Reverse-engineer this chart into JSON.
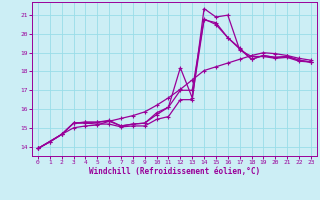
{
  "xlabel": "Windchill (Refroidissement éolien,°C)",
  "xlim": [
    -0.5,
    23.5
  ],
  "ylim": [
    13.5,
    21.7
  ],
  "xticks": [
    0,
    1,
    2,
    3,
    4,
    5,
    6,
    7,
    8,
    9,
    10,
    11,
    12,
    13,
    14,
    15,
    16,
    17,
    18,
    19,
    20,
    21,
    22,
    23
  ],
  "yticks": [
    14,
    15,
    16,
    17,
    18,
    19,
    20,
    21
  ],
  "background_color": "#cceef5",
  "grid_color": "#99dde8",
  "line_color": "#990099",
  "line1_x": [
    0,
    1,
    2,
    3,
    4,
    5,
    6,
    7,
    8,
    9,
    10,
    11,
    12,
    13,
    14,
    15,
    16,
    17,
    18,
    19,
    20,
    21,
    22,
    23
  ],
  "line1_y": [
    13.9,
    14.25,
    14.65,
    15.25,
    15.25,
    15.2,
    15.2,
    15.05,
    15.1,
    15.1,
    15.45,
    15.6,
    16.5,
    16.5,
    21.35,
    20.9,
    21.0,
    19.15,
    18.8,
    18.8,
    18.7,
    18.75,
    18.55,
    18.5
  ],
  "line2_x": [
    0,
    2,
    3,
    4,
    5,
    6,
    7,
    8,
    9,
    10,
    11,
    12,
    13,
    14,
    15,
    16,
    17,
    18,
    19,
    20,
    21,
    22,
    23
  ],
  "line2_y": [
    13.9,
    14.65,
    15.25,
    15.3,
    15.3,
    15.35,
    15.1,
    15.2,
    15.25,
    15.7,
    16.1,
    18.2,
    16.6,
    20.75,
    20.6,
    19.8,
    19.25,
    18.65,
    18.85,
    18.75,
    18.8,
    18.6,
    18.5
  ],
  "line3_x": [
    0,
    2,
    3,
    4,
    5,
    6,
    7,
    8,
    9,
    10,
    11,
    12,
    13,
    14,
    15,
    16,
    17,
    18,
    19,
    20,
    21,
    22,
    23
  ],
  "line3_y": [
    13.9,
    14.65,
    15.25,
    15.3,
    15.3,
    15.4,
    15.1,
    15.2,
    15.25,
    15.8,
    16.1,
    17.0,
    17.0,
    20.8,
    20.5,
    19.8,
    19.2,
    18.65,
    18.85,
    18.75,
    18.8,
    18.6,
    18.5
  ],
  "line4_x": [
    0,
    1,
    2,
    3,
    4,
    5,
    6,
    7,
    8,
    9,
    10,
    11,
    12,
    13,
    14,
    15,
    16,
    17,
    18,
    19,
    20,
    21,
    22,
    23
  ],
  "line4_y": [
    13.9,
    14.25,
    14.65,
    15.0,
    15.1,
    15.15,
    15.35,
    15.5,
    15.65,
    15.85,
    16.2,
    16.6,
    17.05,
    17.55,
    18.05,
    18.25,
    18.45,
    18.65,
    18.85,
    19.0,
    18.95,
    18.85,
    18.7,
    18.6
  ]
}
